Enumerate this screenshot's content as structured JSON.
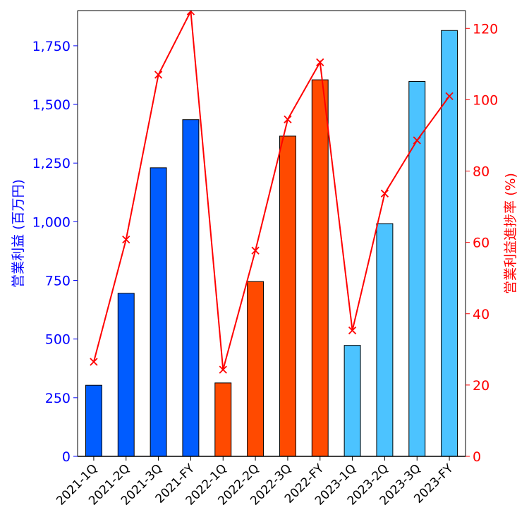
{
  "chart_data": {
    "type": "bar",
    "categories": [
      "2021-1Q",
      "2021-2Q",
      "2021-3Q",
      "2021-FY",
      "2022-1Q",
      "2022-2Q",
      "2022-3Q",
      "2022-FY",
      "2023-1Q",
      "2023-2Q",
      "2023-3Q",
      "2023-FY"
    ],
    "bar_values": [
      303,
      695,
      1230,
      1435,
      313,
      745,
      1365,
      1605,
      473,
      992,
      1598,
      1815
    ],
    "bar_colors": [
      "#005cff",
      "#005cff",
      "#005cff",
      "#005cff",
      "#ff4a00",
      "#ff4a00",
      "#ff4a00",
      "#ff4a00",
      "#4cc3ff",
      "#4cc3ff",
      "#4cc3ff",
      "#4cc3ff"
    ],
    "line_values": [
      26.5,
      60.8,
      107.0,
      124.8,
      24.3,
      57.7,
      94.5,
      110.5,
      35.3,
      73.7,
      88.6,
      101.0
    ],
    "line_color": "#ff0000",
    "xlabel": "",
    "ylabel_left": "営業利益 (百万円)",
    "ylabel_right": "営業利益進捗率 (%)",
    "ylim_left": [
      0,
      1900
    ],
    "ylim_right": [
      0,
      125
    ],
    "yticks_left": [
      0,
      250,
      500,
      750,
      1000,
      1250,
      1500,
      1750
    ],
    "yticks_left_labels": [
      "0",
      "250",
      "500",
      "750",
      "1,000",
      "1,250",
      "1,500",
      "1,750"
    ],
    "yticks_right": [
      0,
      20,
      40,
      60,
      80,
      100,
      120
    ],
    "yticks_right_labels": [
      "0",
      "20",
      "40",
      "60",
      "80",
      "100",
      "120"
    ],
    "grid": false,
    "left_axis_color": "#0000ff",
    "right_axis_color": "#ff0000"
  }
}
